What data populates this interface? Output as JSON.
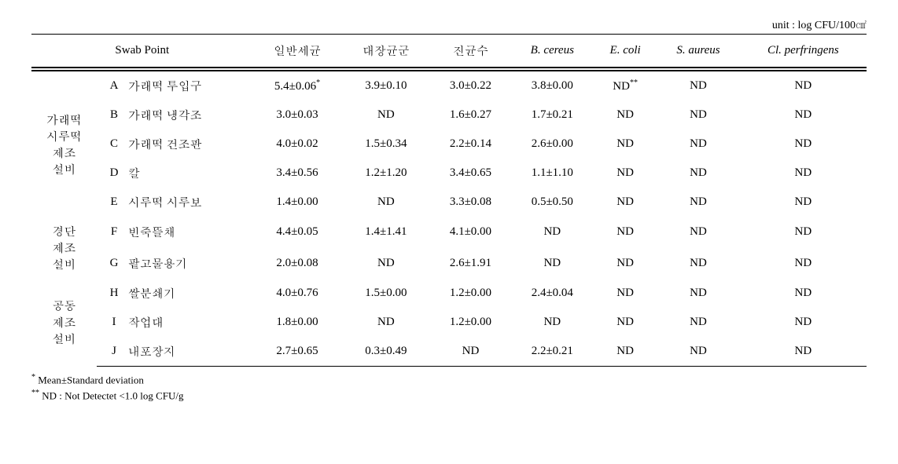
{
  "unit_label": "unit : log CFU/100㎠",
  "columns": {
    "swab_point": "Swab Point",
    "c1": "일반세균",
    "c2": "대장균군",
    "c3": "진균수",
    "c4": "B. cereus",
    "c5": "E. coli",
    "c6": "S. aureus",
    "c7": "Cl. perfringens"
  },
  "groups": {
    "g1": "가래떡\n시루떡\n제조\n설비",
    "g2": "경단\n제조\n설비",
    "g3": "공동\n제조\n설비"
  },
  "rows": {
    "A": {
      "label": "가래떡 투입구",
      "c1": "5.4±0.06",
      "sup1": "*",
      "c2": "3.9±0.10",
      "c3": "3.0±0.22",
      "c4": "3.8±0.00",
      "c5": "ND",
      "sup5": "**",
      "c6": "ND",
      "c7": "ND"
    },
    "B": {
      "label": "가래떡 냉각조",
      "c1": "3.0±0.03",
      "c2": "ND",
      "c3": "1.6±0.27",
      "c4": "1.7±0.21",
      "c5": "ND",
      "c6": "ND",
      "c7": "ND"
    },
    "C": {
      "label": "가래떡 건조판",
      "c1": "4.0±0.02",
      "c2": "1.5±0.34",
      "c3": "2.2±0.14",
      "c4": "2.6±0.00",
      "c5": "ND",
      "c6": "ND",
      "c7": "ND"
    },
    "D": {
      "label": "칼",
      "c1": "3.4±0.56",
      "c2": "1.2±1.20",
      "c3": "3.4±0.65",
      "c4": "1.1±1.10",
      "c5": "ND",
      "c6": "ND",
      "c7": "ND"
    },
    "E": {
      "label": "시루떡 시루보",
      "c1": "1.4±0.00",
      "c2": "ND",
      "c3": "3.3±0.08",
      "c4": "0.5±0.50",
      "c5": "ND",
      "c6": "ND",
      "c7": "ND"
    },
    "F": {
      "label": "빈죽뜰채",
      "c1": "4.4±0.05",
      "c2": "1.4±1.41",
      "c3": "4.1±0.00",
      "c4": "ND",
      "c5": "ND",
      "c6": "ND",
      "c7": "ND"
    },
    "G": {
      "label": "팥고물용기",
      "c1": "2.0±0.08",
      "c2": "ND",
      "c3": "2.6±1.91",
      "c4": "ND",
      "c5": "ND",
      "c6": "ND",
      "c7": "ND"
    },
    "H": {
      "label": "쌀분쇄기",
      "c1": "4.0±0.76",
      "c2": "1.5±0.00",
      "c3": "1.2±0.00",
      "c4": "2.4±0.04",
      "c5": "ND",
      "c6": "ND",
      "c7": "ND"
    },
    "I": {
      "label": "작업대",
      "c1": "1.8±0.00",
      "c2": "ND",
      "c3": "1.2±0.00",
      "c4": "ND",
      "c5": "ND",
      "c6": "ND",
      "c7": "ND"
    },
    "J": {
      "label": "내포장지",
      "c1": "2.7±0.65",
      "c2": "0.3±0.49",
      "c3": "ND",
      "c4": "2.2±0.21",
      "c5": "ND",
      "c6": "ND",
      "c7": "ND"
    }
  },
  "footnotes": {
    "f1": "Mean±Standard deviation",
    "f1_mark": "*",
    "f2": "ND : Not Detectet <1.0 log CFU/g",
    "f2_mark": "**"
  }
}
